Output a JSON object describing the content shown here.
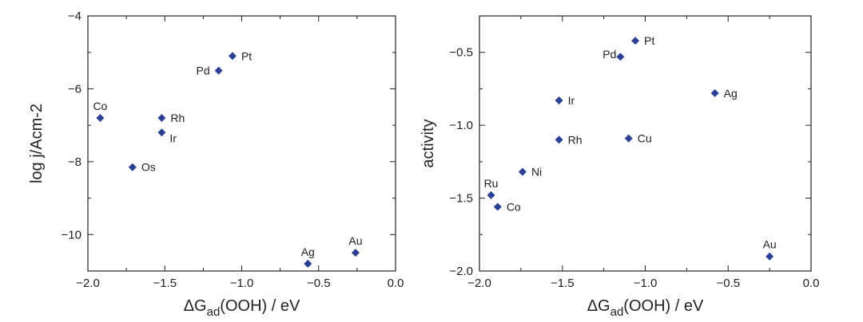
{
  "colors": {
    "marker": "#2b3f95",
    "axis": "#222222"
  },
  "chart_data": [
    {
      "type": "scatter",
      "title": "",
      "xlabel": {
        "prefix": "ΔG",
        "sub": "ad",
        "suffix": "(OOH) / eV"
      },
      "ylabel": "log j/Acm-2",
      "xlim": [
        -2.0,
        0.0
      ],
      "ylim": [
        -11,
        -4
      ],
      "xticks": [
        -2.0,
        -1.5,
        -1.0,
        -0.5,
        0.0
      ],
      "xtick_labels": [
        "−2.0",
        "−1.5",
        "−1.0",
        "−0.5",
        "0.0"
      ],
      "yticks": [
        -10,
        -8,
        -6,
        -4
      ],
      "ytick_labels": [
        "−10",
        "−8",
        "−6",
        "−4"
      ],
      "grid": false,
      "points": [
        {
          "label": "Pt",
          "x": -1.06,
          "y": -5.1,
          "pos": "right"
        },
        {
          "label": "Pd",
          "x": -1.15,
          "y": -5.5,
          "pos": "left"
        },
        {
          "label": "Co",
          "x": -1.92,
          "y": -6.8,
          "pos": "above"
        },
        {
          "label": "Rh",
          "x": -1.52,
          "y": -6.8,
          "pos": "right"
        },
        {
          "label": "Ir",
          "x": -1.52,
          "y": -7.2,
          "pos": "below-right"
        },
        {
          "label": "Os",
          "x": -1.71,
          "y": -8.15,
          "pos": "right"
        },
        {
          "label": "Ag",
          "x": -0.57,
          "y": -10.8,
          "pos": "above"
        },
        {
          "label": "Au",
          "x": -0.26,
          "y": -10.5,
          "pos": "above"
        }
      ]
    },
    {
      "type": "scatter",
      "title": "",
      "xlabel": {
        "prefix": "ΔG",
        "sub": "ad",
        "suffix": "(OOH) / eV"
      },
      "ylabel": "activity",
      "xlim": [
        -2.0,
        0.0
      ],
      "ylim": [
        -2.0,
        -0.25
      ],
      "xticks": [
        -2.0,
        -1.5,
        -1.0,
        -0.5,
        0.0
      ],
      "xtick_labels": [
        "−2.0",
        "−1.5",
        "−1.0",
        "−0.5",
        "0.0"
      ],
      "yticks": [
        -2.0,
        -1.5,
        -1.0,
        -0.5
      ],
      "ytick_labels": [
        "−2.0",
        "−1.5",
        "−1.0",
        "−0.5"
      ],
      "grid": false,
      "points": [
        {
          "label": "Pt",
          "x": -1.06,
          "y": -0.42,
          "pos": "right"
        },
        {
          "label": "Pd",
          "x": -1.15,
          "y": -0.53,
          "pos": "left-above"
        },
        {
          "label": "Ag",
          "x": -0.58,
          "y": -0.78,
          "pos": "right"
        },
        {
          "label": "Ir",
          "x": -1.52,
          "y": -0.83,
          "pos": "right"
        },
        {
          "label": "Rh",
          "x": -1.52,
          "y": -1.1,
          "pos": "right"
        },
        {
          "label": "Cu",
          "x": -1.1,
          "y": -1.09,
          "pos": "right"
        },
        {
          "label": "Ni",
          "x": -1.74,
          "y": -1.32,
          "pos": "right"
        },
        {
          "label": "Ru",
          "x": -1.93,
          "y": -1.48,
          "pos": "above"
        },
        {
          "label": "Co",
          "x": -1.89,
          "y": -1.56,
          "pos": "right"
        },
        {
          "label": "Au",
          "x": -0.25,
          "y": -1.9,
          "pos": "above"
        }
      ]
    }
  ]
}
